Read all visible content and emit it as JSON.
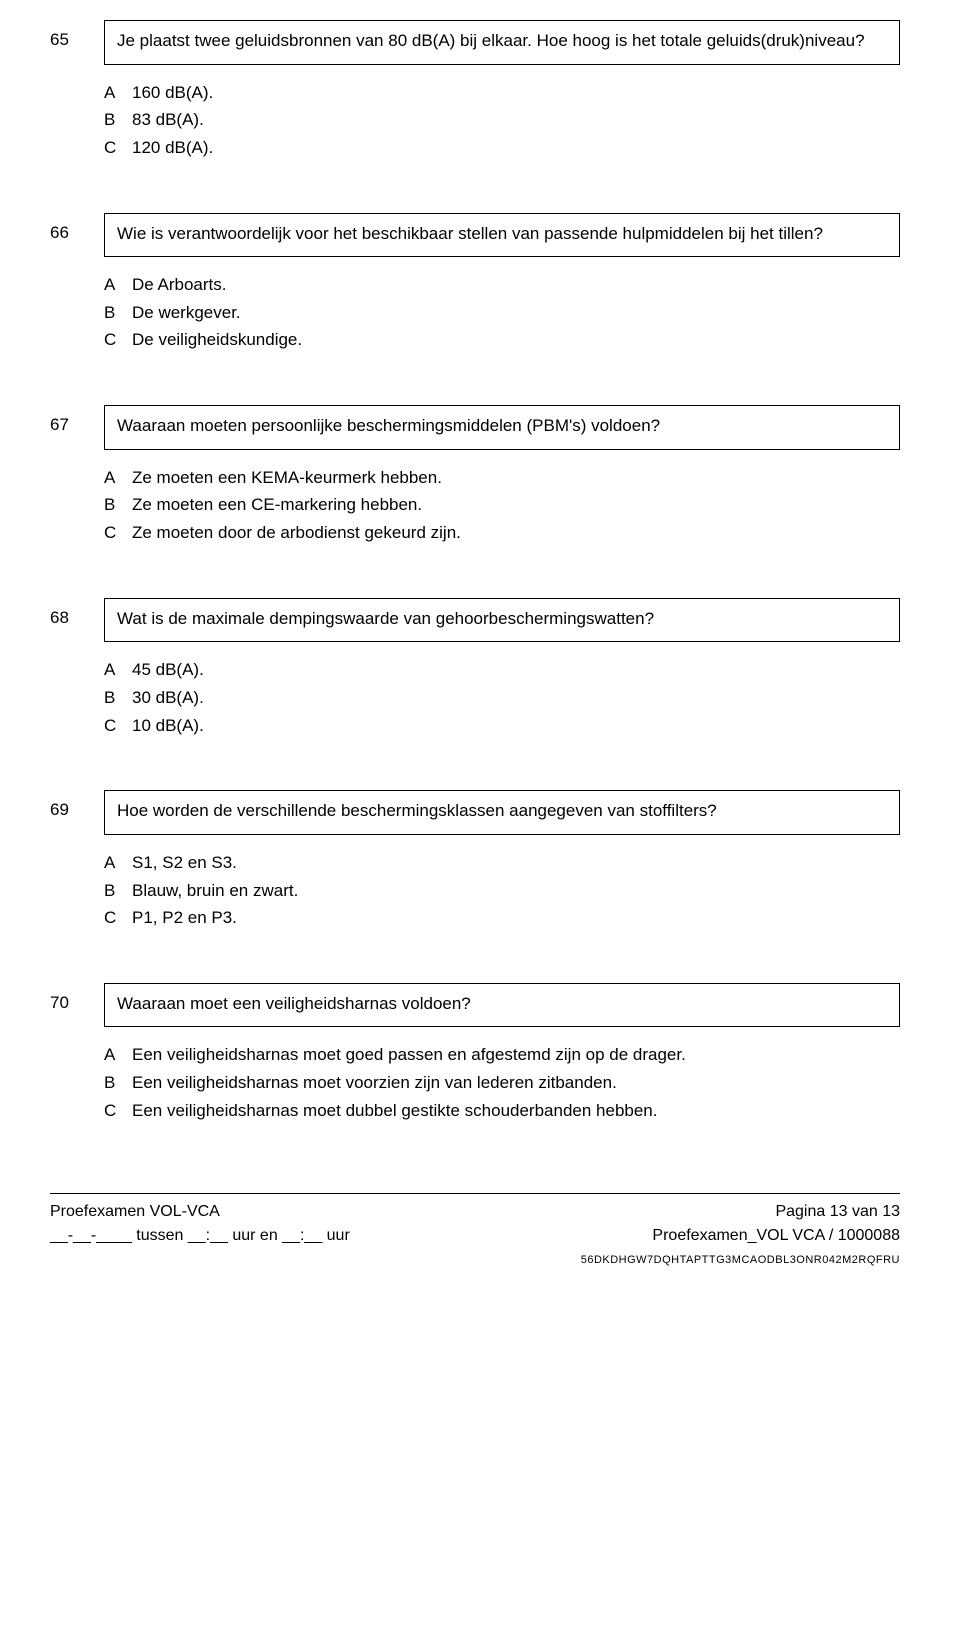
{
  "questions": [
    {
      "number": "65",
      "text": "Je plaatst twee geluidsbronnen van 80 dB(A) bij elkaar. Hoe hoog is het totale geluids(druk)niveau?",
      "answers": [
        {
          "letter": "A",
          "text": "160 dB(A)."
        },
        {
          "letter": "B",
          "text": "83 dB(A)."
        },
        {
          "letter": "C",
          "text": "120 dB(A)."
        }
      ]
    },
    {
      "number": "66",
      "text": "Wie is verantwoordelijk voor het beschikbaar stellen van passende hulpmiddelen bij het tillen?",
      "answers": [
        {
          "letter": "A",
          "text": "De Arboarts."
        },
        {
          "letter": "B",
          "text": "De werkgever."
        },
        {
          "letter": "C",
          "text": "De veiligheidskundige."
        }
      ]
    },
    {
      "number": "67",
      "text": "Waaraan moeten persoonlijke beschermingsmiddelen (PBM's) voldoen?",
      "answers": [
        {
          "letter": "A",
          "text": "Ze moeten een KEMA-keurmerk hebben."
        },
        {
          "letter": "B",
          "text": "Ze moeten een CE-markering hebben."
        },
        {
          "letter": "C",
          "text": "Ze moeten door de arbodienst gekeurd zijn."
        }
      ]
    },
    {
      "number": "68",
      "text": "Wat is de maximale dempingswaarde van gehoorbeschermingswatten?",
      "answers": [
        {
          "letter": "A",
          "text": "45 dB(A)."
        },
        {
          "letter": "B",
          "text": "30 dB(A)."
        },
        {
          "letter": "C",
          "text": "10 dB(A)."
        }
      ]
    },
    {
      "number": "69",
      "text": "Hoe worden de verschillende beschermingsklassen aangegeven van stoffilters?",
      "answers": [
        {
          "letter": "A",
          "text": "S1, S2 en S3."
        },
        {
          "letter": "B",
          "text": "Blauw, bruin en zwart."
        },
        {
          "letter": "C",
          "text": "P1, P2 en P3."
        }
      ]
    },
    {
      "number": "70",
      "text": "Waaraan moet een veiligheidsharnas voldoen?",
      "answers": [
        {
          "letter": "A",
          "text": "Een veiligheidsharnas moet goed passen en afgestemd zijn op de drager."
        },
        {
          "letter": "B",
          "text": "Een veiligheidsharnas moet voorzien zijn van lederen zitbanden."
        },
        {
          "letter": "C",
          "text": "Een veiligheidsharnas moet dubbel gestikte schouderbanden hebben."
        }
      ]
    }
  ],
  "footer": {
    "left_line1": "Proefexamen VOL-VCA",
    "left_line2": "__-__-____ tussen __:__ uur en __:__ uur",
    "right_line1": "Pagina 13 van 13",
    "right_line2": "Proefexamen_VOL VCA  /  1000088",
    "barcode": "56DKDHGW7DQHTAPTTG3MCAODBL3ONR042M2RQFRU"
  }
}
